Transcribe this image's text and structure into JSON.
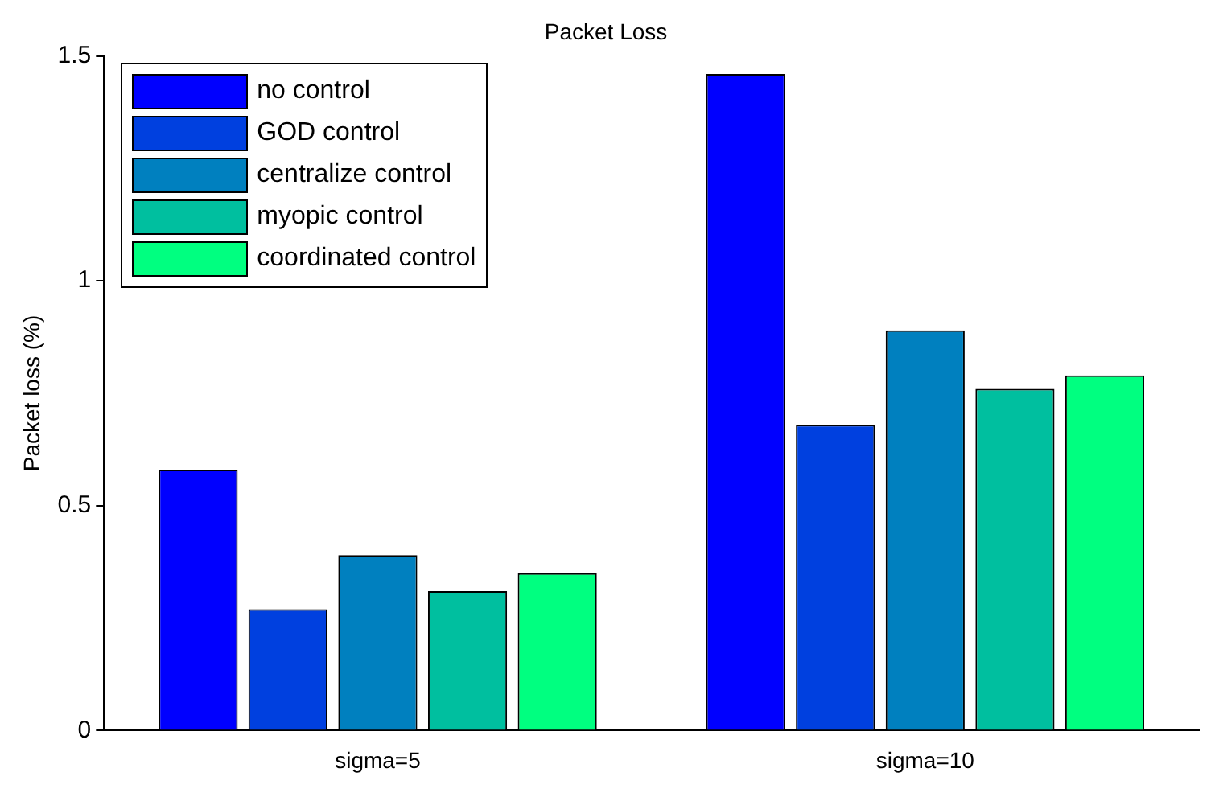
{
  "chart_data": {
    "type": "bar",
    "title": "Packet Loss",
    "ylabel": "Packet loss (%)",
    "categories": [
      "sigma=5",
      "sigma=10"
    ],
    "series": [
      {
        "name": "no control",
        "color": "#0000ff",
        "values": [
          0.58,
          1.46
        ]
      },
      {
        "name": "GOD control",
        "color": "#0040df",
        "values": [
          0.27,
          0.68
        ]
      },
      {
        "name": "centralize control",
        "color": "#0080bf",
        "values": [
          0.39,
          0.89
        ]
      },
      {
        "name": "myopic control",
        "color": "#00bf9f",
        "values": [
          0.31,
          0.76
        ]
      },
      {
        "name": "coordinated control",
        "color": "#00ff80",
        "values": [
          0.35,
          0.79
        ]
      }
    ],
    "ylim": [
      0,
      1.5
    ],
    "yticks": [
      0,
      0.5,
      1,
      1.5
    ],
    "grid": false,
    "legend": "top left"
  }
}
